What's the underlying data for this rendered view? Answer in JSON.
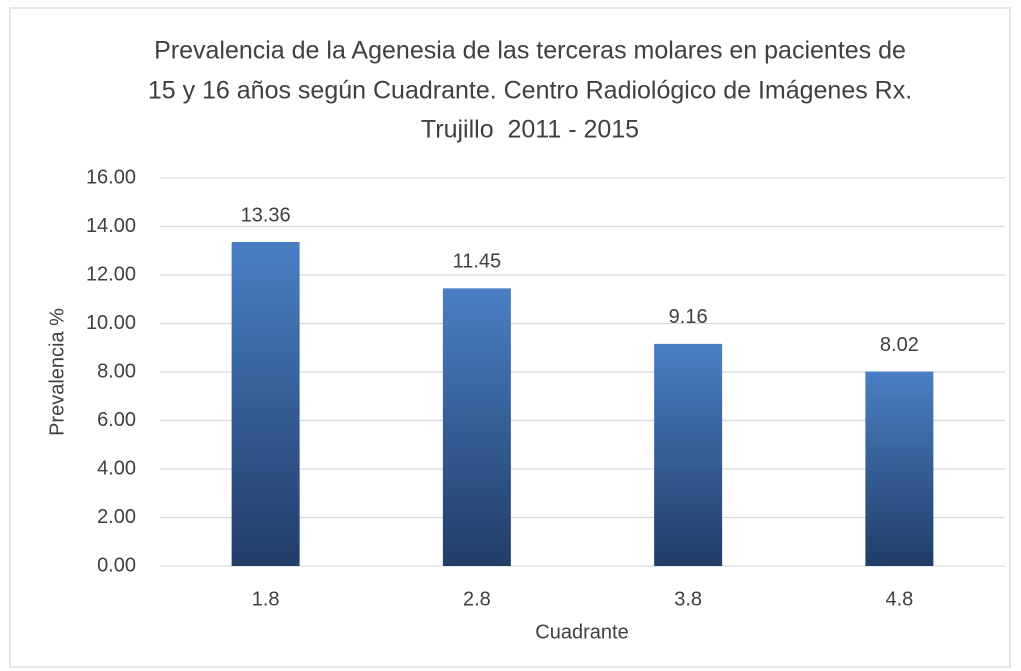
{
  "chart_data": {
    "type": "bar",
    "title": [
      "Prevalencia de la Agenesia de las terceras molares en pacientes de",
      "15 y 16 años según Cuadrante. Centro Radiológico de Imágenes Rx.",
      "Trujillo  2011 - 2015"
    ],
    "x_label": "Cuadrante",
    "y_label": "Prevalencia %",
    "categories": [
      "1.8",
      "2.8",
      "3.8",
      "4.8"
    ],
    "values": [
      13.36,
      11.45,
      9.16,
      8.02
    ],
    "color": "#4a7fc4",
    "ylim": [
      0,
      16
    ],
    "yticks": [
      {
        "value": 0,
        "label": "0.00"
      },
      {
        "value": 2,
        "label": "2.00"
      },
      {
        "value": 4,
        "label": "4.00"
      },
      {
        "value": 6,
        "label": "6.00"
      },
      {
        "value": 8,
        "label": "8.00"
      },
      {
        "value": 10,
        "label": "10.00"
      },
      {
        "value": 12,
        "label": "12.00"
      },
      {
        "value": 14,
        "label": "14.00"
      },
      {
        "value": 16,
        "label": "16.00"
      }
    ],
    "grid": true
  }
}
